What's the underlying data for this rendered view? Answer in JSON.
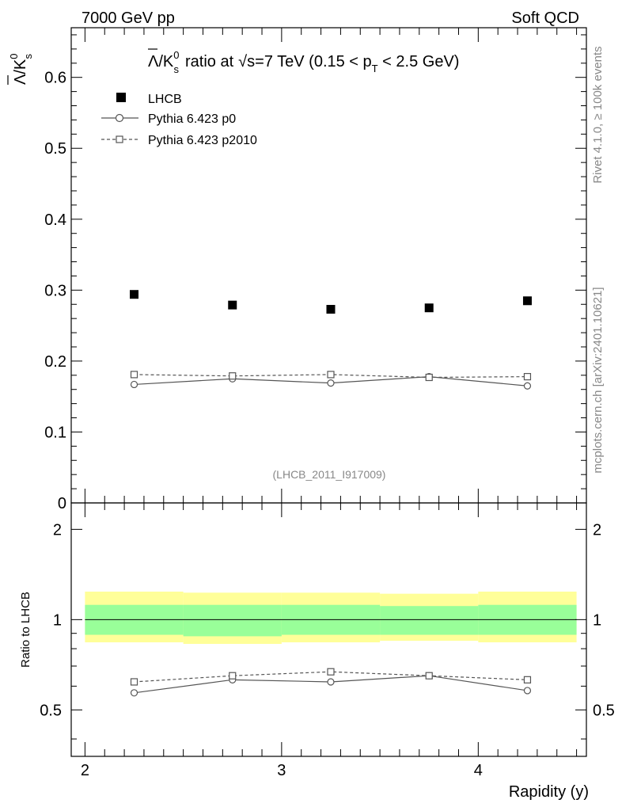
{
  "header": {
    "left_label": "7000 GeV pp",
    "right_label": "Soft QCD"
  },
  "side_labels": {
    "rivet": "Rivet 4.1.0, ≥ 100k events",
    "mcplots": "mcplots.cern.ch [arXiv:2401.10621]"
  },
  "chart_data": [
    {
      "type": "scatter",
      "title_parts": {
        "ratio_text": "ratio at",
        "sqrt": "√s",
        "energy": "=7 TeV (0.15 < p",
        "sub_T": "T",
        "range_end": " < 2.5 GeV)"
      },
      "ylabel_parts": {
        "main": "Λ/K",
        "sup": "0",
        "sub": "s"
      },
      "analysis_id": "(LHCB_2011_I917009)",
      "ylim": [
        0,
        0.67
      ],
      "y_ticks": [
        {
          "value": 0.1,
          "label": "0.1"
        },
        {
          "value": 0.2,
          "label": "0.2"
        },
        {
          "value": 0.3,
          "label": "0.3"
        },
        {
          "value": 0.4,
          "label": "0.4"
        },
        {
          "value": 0.5,
          "label": "0.5"
        },
        {
          "value": 0.6,
          "label": "0.6"
        },
        {
          "value": 0.0,
          "label": "0"
        }
      ],
      "series": [
        {
          "name": "LHCB",
          "style": "data",
          "x": [
            2.25,
            2.75,
            3.25,
            3.75,
            4.25
          ],
          "values": [
            0.294,
            0.279,
            0.273,
            0.275,
            0.285
          ]
        },
        {
          "name": "Pythia 6.423 p0",
          "style": "circle-solid",
          "x": [
            2.25,
            2.75,
            3.25,
            3.75,
            4.25
          ],
          "values": [
            0.167,
            0.175,
            0.169,
            0.178,
            0.165
          ]
        },
        {
          "name": "Pythia 6.423 p2010",
          "style": "square-dashed",
          "x": [
            2.25,
            2.75,
            3.25,
            3.75,
            4.25
          ],
          "values": [
            0.181,
            0.179,
            0.181,
            0.177,
            0.178
          ]
        }
      ]
    },
    {
      "type": "line",
      "ylabel": "Ratio to LHCB",
      "xlabel": "Rapidity (y)",
      "xlim": [
        1.93,
        4.55
      ],
      "ylim_log": [
        0.35,
        2.45
      ],
      "x_ticks": [
        {
          "value": 2,
          "label": "2"
        },
        {
          "value": 3,
          "label": "3"
        },
        {
          "value": 4,
          "label": "4"
        }
      ],
      "y_ticks": [
        {
          "value": 0.5,
          "label": "0.5"
        },
        {
          "value": 1,
          "label": "1"
        },
        {
          "value": 2,
          "label": "2"
        }
      ],
      "bands": [
        {
          "x": [
            2.0,
            2.5
          ],
          "inner": [
            0.89,
            1.12
          ],
          "outer": [
            0.84,
            1.24
          ]
        },
        {
          "x": [
            2.5,
            3.0
          ],
          "inner": [
            0.88,
            1.12
          ],
          "outer": [
            0.83,
            1.23
          ]
        },
        {
          "x": [
            3.0,
            3.5
          ],
          "inner": [
            0.89,
            1.12
          ],
          "outer": [
            0.84,
            1.23
          ]
        },
        {
          "x": [
            3.5,
            4.0
          ],
          "inner": [
            0.89,
            1.11
          ],
          "outer": [
            0.85,
            1.22
          ]
        },
        {
          "x": [
            4.0,
            4.5
          ],
          "inner": [
            0.89,
            1.12
          ],
          "outer": [
            0.84,
            1.24
          ]
        }
      ],
      "series": [
        {
          "name": "Pythia 6.423 p0",
          "style": "circle-solid",
          "x": [
            2.25,
            2.75,
            3.25,
            3.75,
            4.25
          ],
          "values": [
            0.57,
            0.63,
            0.62,
            0.65,
            0.58
          ]
        },
        {
          "name": "Pythia 6.423 p2010",
          "style": "square-dashed",
          "x": [
            2.25,
            2.75,
            3.25,
            3.75,
            4.25
          ],
          "values": [
            0.62,
            0.65,
            0.67,
            0.65,
            0.63
          ]
        }
      ]
    }
  ],
  "colors": {
    "data": "#000000",
    "mc": "#555555",
    "band_inner": "#99ff99",
    "band_outer": "#ffff99",
    "grey_text": "#888888"
  }
}
